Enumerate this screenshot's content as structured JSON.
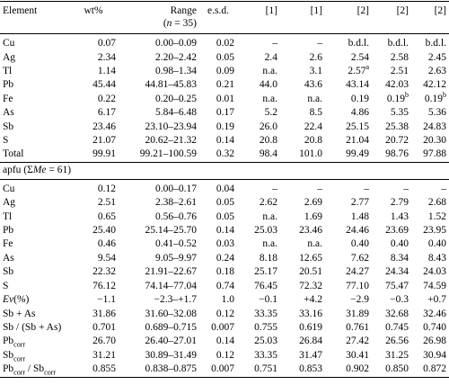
{
  "table": {
    "header": [
      "Element",
      "wt%",
      [
        "Range",
        {
          "text": "(",
          "break": true
        },
        {
          "text": "n",
          "italic": true
        },
        " = 35)"
      ],
      "e.s.d.",
      "[1]",
      "[1]",
      "[2]",
      "[2]",
      "[2]"
    ],
    "sections": [
      {
        "rows": [
          [
            "Cu",
            "0.07",
            "0.00–0.09",
            "0.02",
            "–",
            "–",
            "b.d.l.",
            "b.d.l.",
            "b.d.l."
          ],
          [
            "Ag",
            "2.34",
            "2.20–2.42",
            "0.05",
            "2.4",
            "2.6",
            "2.54",
            "2.58",
            "2.45"
          ],
          [
            "Tl",
            "1.14",
            "0.98–1.34",
            "0.09",
            "n.a.",
            "3.1",
            [
              "2.57",
              {
                "text": "a",
                "sup": true
              }
            ],
            "2.51",
            "2.63"
          ],
          [
            "Pb",
            "45.44",
            "44.81–45.83",
            "0.21",
            "44.0",
            "43.6",
            "43.14",
            "42.03",
            "42.12"
          ],
          [
            "Fe",
            "0.22",
            "0.20–0.25",
            "0.01",
            "n.a.",
            "n.a.",
            "0.19",
            [
              "0.19",
              {
                "text": "b",
                "sup": true
              }
            ],
            [
              "0.19",
              {
                "text": "b",
                "sup": true
              }
            ]
          ],
          [
            "As",
            "6.17",
            "5.84–6.48",
            "0.17",
            "5.2",
            "8.5",
            "4.86",
            "5.35",
            "5.36"
          ],
          [
            "Sb",
            "23.46",
            "23.10–23.94",
            "0.19",
            "26.0",
            "22.4",
            "25.15",
            "25.38",
            "24.83"
          ],
          [
            "S",
            "21.07",
            "20.62–21.32",
            "0.14",
            "20.8",
            "20.8",
            "21.04",
            "20.72",
            "20.30"
          ],
          [
            "Total",
            "99.91",
            "99.21–100.59",
            "0.32",
            "98.4",
            "101.0",
            "99.49",
            "98.76",
            "97.88"
          ]
        ]
      },
      {
        "title": [
          "apfu (Σ",
          {
            "text": "Me",
            "italic": true
          },
          " = 61)"
        ],
        "rows": [
          [
            "Cu",
            "0.12",
            "0.00–0.17",
            "0.04",
            "–",
            "–",
            "–",
            "–",
            "–"
          ],
          [
            "Ag",
            "2.51",
            "2.38–2.61",
            "0.05",
            "2.62",
            "2.69",
            "2.77",
            "2.79",
            "2.68"
          ],
          [
            "Tl",
            "0.65",
            "0.56–0.76",
            "0.05",
            "n.a.",
            "1.69",
            "1.48",
            "1.43",
            "1.52"
          ],
          [
            "Pb",
            "25.40",
            "25.14–25.70",
            "0.14",
            "25.03",
            "23.46",
            "24.46",
            "23.69",
            "23.95"
          ],
          [
            "Fe",
            "0.46",
            "0.41–0.52",
            "0.03",
            "n.a.",
            "n.a.",
            "0.40",
            "0.40",
            "0.40"
          ],
          [
            "As",
            "9.54",
            "9.05–9.97",
            "0.24",
            "8.18",
            "12.65",
            "7.62",
            "8.34",
            "8.43"
          ],
          [
            "Sb",
            "22.32",
            "21.91–22.67",
            "0.18",
            "25.17",
            "20.51",
            "24.27",
            "24.34",
            "24.03"
          ],
          [
            "S",
            "76.12",
            "74.14–77.04",
            "0.74",
            "76.45",
            "72.32",
            "77.10",
            "75.47",
            "74.59"
          ],
          [
            [
              {
                "text": "Ev",
                "italic": true
              },
              "(%)"
            ],
            "−1.1",
            "−2.3–+1.7",
            "1.0",
            "−0.1",
            "+4.2",
            "−2.9",
            "−0.3",
            "+0.7"
          ],
          [
            "Sb + As",
            "31.86",
            "31.60–32.08",
            "0.12",
            "33.35",
            "33.16",
            "31.89",
            "32.68",
            "32.46"
          ],
          [
            "Sb / (Sb + As)",
            "0.701",
            "0.689–0.715",
            "0.007",
            "0.755",
            "0.619",
            "0.761",
            "0.745",
            "0.740"
          ],
          [
            [
              "Pb",
              {
                "text": "corr",
                "sub": true
              }
            ],
            "26.70",
            "26.40–27.01",
            "0.14",
            "25.03",
            "26.84",
            "27.42",
            "26.56",
            "26.98"
          ],
          [
            [
              "Sb",
              {
                "text": "corr",
                "sub": true
              }
            ],
            "31.21",
            "30.89–31.49",
            "0.12",
            "33.35",
            "31.47",
            "30.41",
            "31.25",
            "30.94"
          ],
          [
            [
              "Pb",
              {
                "text": "corr",
                "sub": true
              },
              " / Sb",
              {
                "text": "corr",
                "sub": true
              }
            ],
            "0.855",
            "0.838–0.875",
            "0.007",
            "0.751",
            "0.853",
            "0.902",
            "0.850",
            "0.872"
          ]
        ]
      }
    ]
  }
}
